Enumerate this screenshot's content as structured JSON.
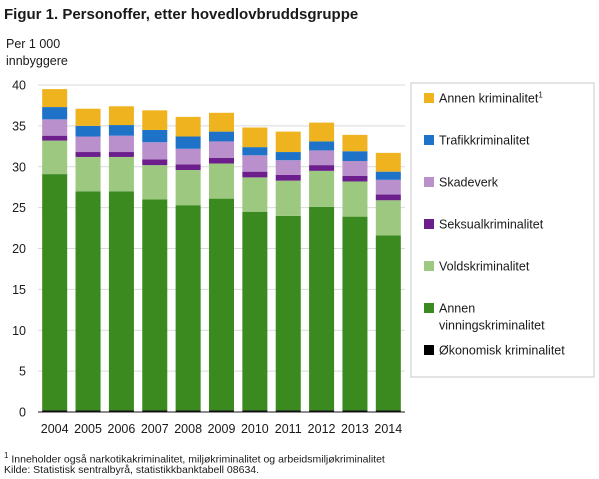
{
  "title": "Figur 1. Personoffer, etter hovedlovbruddsgruppe",
  "y_unit_line1": "Per 1 000",
  "y_unit_line2": "innbyggere",
  "footnote_marker": "1",
  "footnote_text": " Inneholder også narkotikakriminalitet, miljøkriminalitet og arbeidsmiljøkriminalitet",
  "source": "Kilde: Statistisk sentralbyrå, statistikkbanktabell  08634.",
  "chart_data": {
    "type": "bar",
    "stacked": true,
    "categories": [
      "2004",
      "2005",
      "2006",
      "2007",
      "2008",
      "2009",
      "2010",
      "2011",
      "2012",
      "2013",
      "2014"
    ],
    "ylim": [
      0,
      40
    ],
    "yticks": [
      0,
      5,
      10,
      15,
      20,
      25,
      30,
      35,
      40
    ],
    "grid": true,
    "legend_position": "right",
    "series": [
      {
        "name": "Økonomisk kriminalitet",
        "color": "#000000",
        "values": [
          0.2,
          0.2,
          0.2,
          0.2,
          0.2,
          0.2,
          0.2,
          0.2,
          0.2,
          0.2,
          0.2
        ]
      },
      {
        "name": "Annen vinningskriminalitet",
        "name_lines": [
          "Annen",
          "vinningskriminalitet"
        ],
        "color": "#3a8a1f",
        "values": [
          28.9,
          26.8,
          26.8,
          25.8,
          25.1,
          25.9,
          24.3,
          23.8,
          24.9,
          23.7,
          21.4
        ]
      },
      {
        "name": "Voldskriminalitet",
        "color": "#9cc97f",
        "values": [
          4.1,
          4.2,
          4.2,
          4.2,
          4.3,
          4.3,
          4.2,
          4.3,
          4.4,
          4.3,
          4.3
        ]
      },
      {
        "name": "Seksualkriminalitet",
        "color": "#6b1e8c",
        "values": [
          0.6,
          0.6,
          0.6,
          0.7,
          0.7,
          0.7,
          0.7,
          0.7,
          0.7,
          0.7,
          0.7
        ]
      },
      {
        "name": "Skadeverk",
        "color": "#b98fcc",
        "values": [
          2.0,
          1.9,
          2.0,
          2.1,
          1.9,
          2.0,
          2.0,
          1.8,
          1.8,
          1.8,
          1.8
        ]
      },
      {
        "name": "Trafikkriminalitet",
        "color": "#1e73c8",
        "values": [
          1.5,
          1.3,
          1.3,
          1.5,
          1.5,
          1.2,
          1.0,
          1.0,
          1.1,
          1.2,
          1.0
        ]
      },
      {
        "name": "Annen kriminalitet",
        "name_sup": "1",
        "color": "#efb320",
        "values": [
          2.2,
          2.1,
          2.3,
          2.4,
          2.4,
          2.3,
          2.4,
          2.5,
          2.3,
          2.0,
          2.3
        ]
      }
    ]
  }
}
